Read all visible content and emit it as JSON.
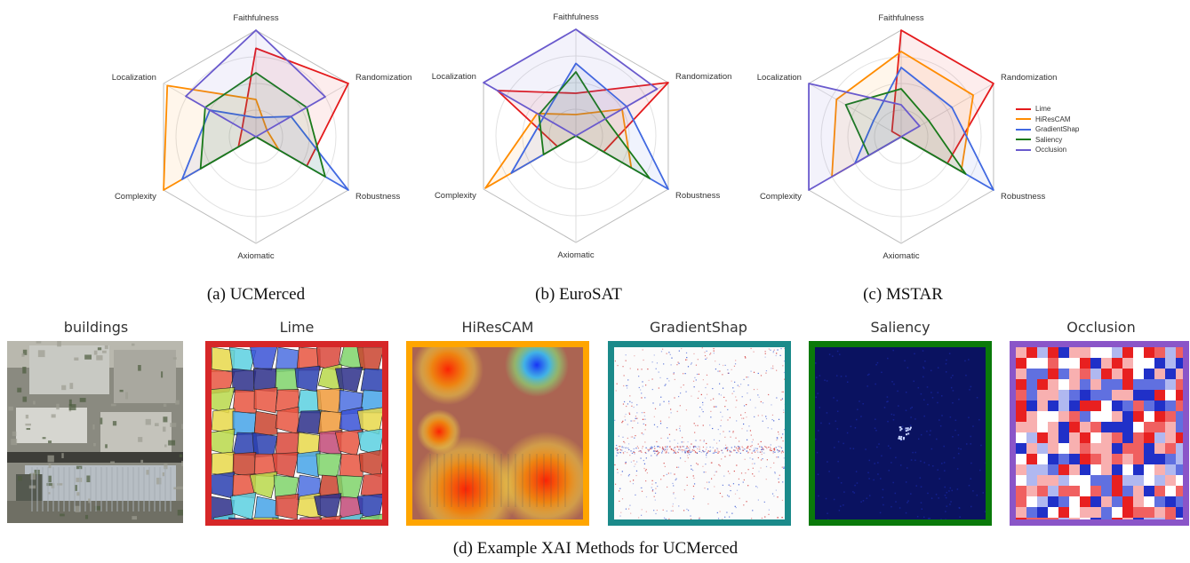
{
  "chart_data": [
    {
      "type": "radar",
      "axes": [
        "Faithfulness",
        "Randomization",
        "Robustness",
        "Axiomatic",
        "Complexity",
        "Localization"
      ],
      "range": [
        0,
        1
      ],
      "grid": true,
      "caption": "(a) UCMerced",
      "series": [
        {
          "name": "Lime",
          "color": "#e41a1c",
          "values": [
            0.83,
            1.0,
            0.55,
            0.0,
            0.19,
            0.15
          ]
        },
        {
          "name": "HiResCAM",
          "color": "#ff8c00",
          "values": [
            0.35,
            0.12,
            0.25,
            0.0,
            1.0,
            0.96
          ]
        },
        {
          "name": "GradientShap",
          "color": "#4169e1",
          "values": [
            0.18,
            0.38,
            1.0,
            0.0,
            0.8,
            0.5
          ]
        },
        {
          "name": "Saliency",
          "color": "#1a7a1a",
          "values": [
            0.6,
            0.55,
            0.75,
            0.0,
            0.6,
            0.55
          ]
        },
        {
          "name": "Occlusion",
          "color": "#6a5acd",
          "values": [
            1.0,
            0.75,
            0.0,
            0.0,
            0.0,
            0.76
          ]
        }
      ]
    },
    {
      "type": "radar",
      "axes": [
        "Faithfulness",
        "Randomization",
        "Robustness",
        "Axiomatic",
        "Complexity",
        "Localization"
      ],
      "range": [
        0,
        1
      ],
      "grid": true,
      "caption": "(b) EuroSAT",
      "series": [
        {
          "name": "Lime",
          "color": "#e41a1c",
          "values": [
            0.4,
            1.0,
            0.3,
            0.0,
            0.2,
            0.85
          ]
        },
        {
          "name": "HiResCAM",
          "color": "#ff8c00",
          "values": [
            0.2,
            0.5,
            0.6,
            0.0,
            0.98,
            0.42
          ]
        },
        {
          "name": "GradientShap",
          "color": "#4169e1",
          "values": [
            0.68,
            0.55,
            1.0,
            0.0,
            0.7,
            0.35
          ]
        },
        {
          "name": "Saliency",
          "color": "#1a7a1a",
          "values": [
            0.6,
            0.32,
            0.8,
            0.0,
            0.35,
            0.4
          ]
        },
        {
          "name": "Occlusion",
          "color": "#6a5acd",
          "values": [
            1.0,
            0.88,
            0.0,
            0.0,
            0.0,
            1.0
          ]
        }
      ]
    },
    {
      "type": "radar",
      "axes": [
        "Faithfulness",
        "Randomization",
        "Robustness",
        "Axiomatic",
        "Complexity",
        "Localization"
      ],
      "range": [
        0,
        1
      ],
      "grid": true,
      "caption": "(c) MSTAR",
      "series": [
        {
          "name": "Lime",
          "color": "#e41a1c",
          "values": [
            1.0,
            1.0,
            0.5,
            0.0,
            0.0,
            0.1
          ]
        },
        {
          "name": "HiResCAM",
          "color": "#ff8c00",
          "values": [
            0.8,
            0.78,
            0.65,
            0.0,
            0.75,
            0.7
          ]
        },
        {
          "name": "GradientShap",
          "color": "#4169e1",
          "values": [
            0.65,
            0.55,
            1.0,
            0.0,
            0.5,
            0.3
          ]
        },
        {
          "name": "Saliency",
          "color": "#1a7a1a",
          "values": [
            0.45,
            0.3,
            0.7,
            0.0,
            0.35,
            0.6
          ]
        },
        {
          "name": "Occlusion",
          "color": "#6a5acd",
          "values": [
            0.3,
            0.2,
            0.0,
            0.0,
            1.0,
            1.0
          ]
        }
      ]
    }
  ],
  "legend": [
    {
      "name": "Lime",
      "color": "#e41a1c"
    },
    {
      "name": "HiResCAM",
      "color": "#ff8c00"
    },
    {
      "name": "GradientShap",
      "color": "#4169e1"
    },
    {
      "name": "Saliency",
      "color": "#1a7a1a"
    },
    {
      "name": "Occlusion",
      "color": "#6a5acd"
    }
  ],
  "xai_examples": {
    "caption": "(d) Example XAI Methods for UCMerced",
    "panels": [
      {
        "title": "buildings",
        "border": "",
        "kind": "aerial-photo"
      },
      {
        "title": "Lime",
        "border": "#d62728",
        "kind": "superpixel-segmentation"
      },
      {
        "title": "HiResCAM",
        "border": "#ffa500",
        "kind": "heatmap-overlay"
      },
      {
        "title": "GradientShap",
        "border": "#1b8a8a",
        "kind": "sparse-attribution"
      },
      {
        "title": "Saliency",
        "border": "#0a7a0a",
        "kind": "dark-saliency-map"
      },
      {
        "title": "Occlusion",
        "border": "#8a55c8",
        "kind": "red-blue-occlusion-grid"
      }
    ]
  }
}
